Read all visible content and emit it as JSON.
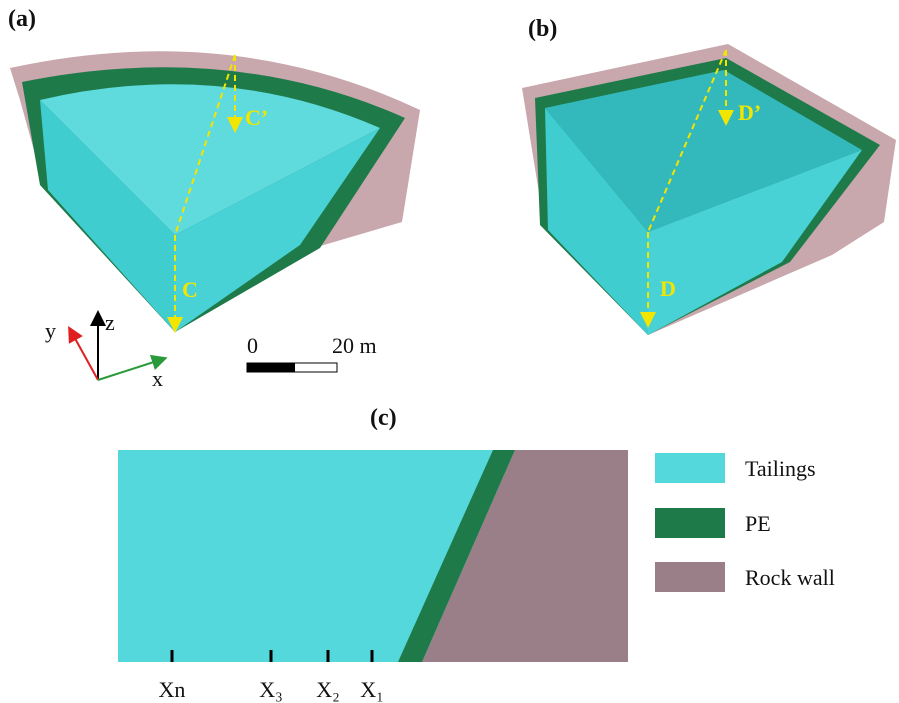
{
  "panels": {
    "a": {
      "label": "(a)",
      "top_marker": "C’",
      "bottom_marker": "C"
    },
    "b": {
      "label": "(b)",
      "top_marker": "D’",
      "bottom_marker": "D"
    },
    "c": {
      "label": "(c)"
    }
  },
  "axes": {
    "y": "y",
    "z": "z",
    "x": "x"
  },
  "scale_bar": {
    "start": "0",
    "end": "20 m"
  },
  "legend": [
    "Tailings",
    "PE",
    "Rock wall"
  ],
  "positions": [
    "Xn",
    "X₃",
    "X₂",
    "X₁"
  ]
}
